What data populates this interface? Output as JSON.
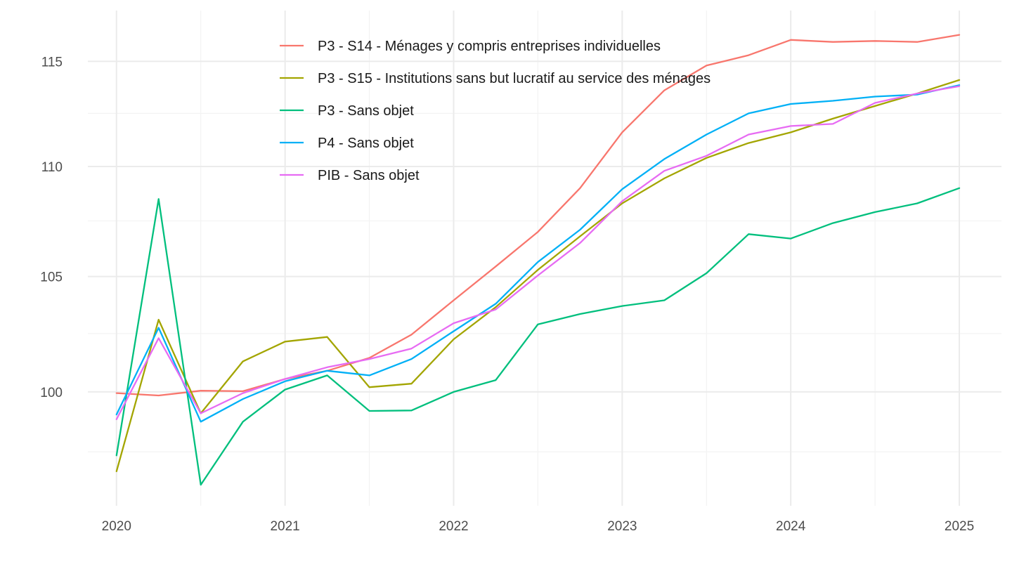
{
  "chart_data": {
    "type": "line",
    "title": "",
    "xlabel": "",
    "ylabel": "",
    "x_ticks": [
      "2020",
      "2021",
      "2022",
      "2023",
      "2024",
      "2025"
    ],
    "y_ticks": [
      "100",
      "105",
      "110",
      "115"
    ],
    "xlim": [
      2019.83,
      2025.25
    ],
    "ylim": [
      95.3,
      117.5
    ],
    "y_scale": "log",
    "grid": true,
    "legend_position": "top-center",
    "x": [
      "2020-Q1",
      "2020-Q2",
      "2020-Q3",
      "2020-Q4",
      "2021-Q1",
      "2021-Q2",
      "2021-Q3",
      "2021-Q4",
      "2022-Q1",
      "2022-Q2",
      "2022-Q3",
      "2022-Q4",
      "2023-Q1",
      "2023-Q2",
      "2023-Q3",
      "2023-Q4",
      "2024-Q1",
      "2024-Q2",
      "2024-Q3",
      "2024-Q4",
      "2025-Q1"
    ],
    "series": [
      {
        "name": "P3 - S14 - Ménages y compris entreprises individuelles",
        "color": "#F8766D",
        "values": [
          99.95,
          99.85,
          100.05,
          100.03,
          100.55,
          100.9,
          101.45,
          102.45,
          103.95,
          105.45,
          107.0,
          109.0,
          111.6,
          113.6,
          114.8,
          115.3,
          116.05,
          115.95,
          116.0,
          115.95,
          116.3
        ]
      },
      {
        "name": "P3 - S15 - Institutions sans but lucratif au service des ménages",
        "color": "#A3A500",
        "values": [
          96.7,
          103.1,
          99.1,
          101.3,
          102.15,
          102.35,
          100.2,
          100.35,
          102.25,
          103.65,
          105.3,
          106.8,
          108.3,
          109.45,
          110.4,
          111.1,
          111.6,
          112.25,
          112.85,
          113.45,
          114.1
        ]
      },
      {
        "name": "P3 - Sans objet",
        "color": "#00BF7D",
        "values": [
          97.35,
          108.5,
          96.15,
          98.75,
          100.1,
          100.7,
          99.2,
          99.22,
          100.0,
          100.5,
          102.9,
          103.35,
          103.7,
          103.95,
          105.15,
          106.9,
          106.7,
          107.4,
          107.9,
          108.3,
          109.0
        ]
      },
      {
        "name": "P4 - Sans objet",
        "color": "#00B0F6",
        "values": [
          99.05,
          102.75,
          98.75,
          99.7,
          100.45,
          100.9,
          100.7,
          101.4,
          102.6,
          103.8,
          105.65,
          107.1,
          108.95,
          110.35,
          111.5,
          112.5,
          112.95,
          113.1,
          113.3,
          113.4,
          113.85
        ]
      },
      {
        "name": "PIB - Sans objet",
        "color": "#E76BF3",
        "values": [
          98.85,
          102.3,
          99.1,
          99.95,
          100.55,
          101.05,
          101.4,
          101.85,
          102.95,
          103.55,
          105.05,
          106.5,
          108.4,
          109.8,
          110.5,
          111.5,
          111.9,
          112.0,
          113.0,
          113.45,
          113.8
        ]
      }
    ]
  }
}
